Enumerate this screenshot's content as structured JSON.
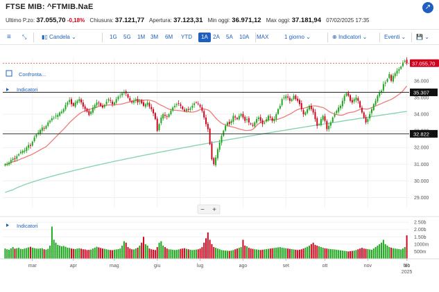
{
  "header": {
    "title": "FTSE MIB: ^FTMIB.NaE",
    "share_icon": "share-icon"
  },
  "quote": {
    "last_label": "Ultimo P.zo:",
    "last_value": "37.055,70",
    "change": "-0,18%",
    "close_label": "Chiusura:",
    "close_value": "37.121,77",
    "open_label": "Apertura:",
    "open_value": "37.123,31",
    "low_label": "Min oggi:",
    "low_value": "36.971,12",
    "high_label": "Max oggi:",
    "high_value": "37.181,94",
    "datetime": "07/02/2025 17:35"
  },
  "toolbar": {
    "chart_type": "Candela",
    "ranges": [
      "1G",
      "5G",
      "1M",
      "3M",
      "6M",
      "YTD",
      "1A",
      "2A",
      "5A",
      "10A",
      "MAX"
    ],
    "selected_range": "1A",
    "interval": "1 giorno",
    "indicators": "Indicatori",
    "events": "Eventi"
  },
  "panel": {
    "compare_label": "Confronta...",
    "indicators_label": "Indicatori",
    "volume_indicators_label": "Indicatori",
    "zoom_out": "−",
    "zoom_in": "+"
  },
  "chart_data": {
    "type": "candlestick",
    "price_axis": [
      "36.000",
      "35.000",
      "34.000",
      "33.000",
      "32.000",
      "31.000",
      "30.000",
      "29.000"
    ],
    "volume_axis": [
      "2.50b",
      "2.00b",
      "1.50b",
      "1000m",
      "500m"
    ],
    "x_labels": [
      "mar",
      "apr",
      "mag",
      "giu",
      "lug",
      "ago",
      "set",
      "ott",
      "nov",
      "dic",
      "2025",
      "feb"
    ],
    "ylim": [
      28400,
      37400
    ],
    "last_price_label": "37.055,70",
    "levels": [
      {
        "label": "35.307",
        "value": 35307
      },
      {
        "label": "32.822",
        "value": 32822
      }
    ],
    "colors": {
      "up": "#1aa51a",
      "down": "#d0021b",
      "ma_fast": "#f07a7a",
      "ma_slow": "#88d4b0",
      "accent": "#1f5fbf"
    },
    "closes": [
      31000,
      31020,
      31100,
      31250,
      31330,
      31300,
      31480,
      31600,
      31740,
      31800,
      31830,
      32000,
      32150,
      32100,
      32350,
      32600,
      32780,
      32900,
      33050,
      33200,
      33150,
      33300,
      33500,
      33600,
      33750,
      33800,
      33900,
      33950,
      34100,
      34150,
      34300,
      34550,
      34700,
      34850,
      34600,
      34500,
      34700,
      34800,
      34900,
      34700,
      34450,
      34300,
      34150,
      33950,
      34150,
      34400,
      34550,
      34700,
      34650,
      34500,
      34400,
      34550,
      34750,
      34900,
      34800,
      34600,
      34700,
      34900,
      35050,
      35100,
      35250,
      35300,
      35250,
      35000,
      34800,
      34700,
      34800,
      34900,
      34700,
      34800,
      34650,
      34500,
      34600,
      34700,
      34450,
      34300,
      34050,
      33700,
      33000,
      33400,
      33800,
      34000,
      33900,
      33850,
      34000,
      34200,
      34400,
      34500,
      34600,
      34650,
      34500,
      34300,
      34200,
      34300,
      34250,
      34350,
      34500,
      34650,
      34700,
      34600,
      34450,
      34200,
      33800,
      33400,
      33100,
      32200,
      31300,
      31000,
      31400,
      31900,
      32300,
      32700,
      33000,
      33300,
      33500,
      33400,
      33600,
      33900,
      33800,
      33700,
      33900,
      34000,
      33800,
      33600,
      33700,
      33500,
      33400,
      33300,
      33500,
      33700,
      33800,
      33600,
      33400,
      33500,
      33700,
      33900,
      33800,
      33600,
      33700,
      34000,
      34300,
      34500,
      34900,
      35000,
      35100,
      35000,
      34800,
      34900,
      35100,
      34900,
      34800,
      34600,
      34300,
      34000,
      34100,
      34300,
      34500,
      34300,
      34100,
      33700,
      33300,
      33400,
      33700,
      33900,
      33600,
      33100,
      33300,
      33500,
      33800,
      34000,
      34200,
      34400,
      34500,
      34800,
      35100,
      35250,
      35100,
      34800,
      34700,
      34900,
      35000,
      34800,
      34400,
      34100,
      33800,
      33500,
      33700,
      34000,
      34300,
      34600,
      34800,
      35100,
      35300,
      35400,
      35800,
      35900,
      36100,
      36400,
      36000,
      36300,
      36450,
      36600,
      36700,
      36850,
      37100,
      37200,
      37050
    ],
    "volumes": [
      700,
      650,
      620,
      710,
      800,
      690,
      720,
      750,
      680,
      660,
      700,
      740,
      780,
      820,
      760,
      730,
      700,
      690,
      710,
      720,
      650,
      630,
      680,
      900,
      2200,
      1300,
      1100,
      950,
      900,
      850,
      880,
      820,
      760,
      740,
      700,
      680,
      660,
      700,
      720,
      690,
      650,
      640,
      600,
      610,
      630,
      700,
      760,
      820,
      780,
      740,
      700,
      680,
      650,
      620,
      600,
      590,
      620,
      640,
      660,
      700,
      900,
      1200,
      1100,
      800,
      700,
      650,
      640,
      700,
      760,
      900,
      1100,
      1500,
      1000,
      900,
      700,
      650,
      620,
      600,
      800,
      1100,
      1200,
      900,
      800,
      700,
      650,
      640,
      620,
      600,
      610,
      640,
      680,
      700,
      720,
      680,
      650,
      620,
      600,
      610,
      630,
      650,
      700,
      800,
      1100,
      1400,
      1800,
      1300,
      1000,
      800,
      750,
      700,
      650,
      600,
      580,
      560,
      550,
      540,
      560,
      600,
      650,
      700,
      750,
      800,
      1300,
      900,
      850,
      750,
      700,
      680,
      650,
      640,
      620,
      600,
      620,
      640,
      660,
      680,
      700,
      720,
      740,
      760,
      780,
      800,
      760,
      740,
      720,
      700,
      680,
      660,
      640,
      620,
      600,
      620,
      650,
      700,
      760,
      820,
      900,
      1000,
      1100,
      950,
      900,
      850,
      800,
      760,
      720,
      700,
      680,
      660,
      650,
      640,
      620,
      600,
      580,
      560,
      540,
      520,
      500,
      520,
      540,
      560,
      600,
      650,
      700,
      750,
      700,
      680,
      660,
      640,
      620,
      700,
      800,
      900,
      1000,
      1100,
      1300,
      1000,
      900,
      800,
      760,
      720,
      700,
      680,
      660,
      640,
      700,
      800,
      1600
    ]
  }
}
